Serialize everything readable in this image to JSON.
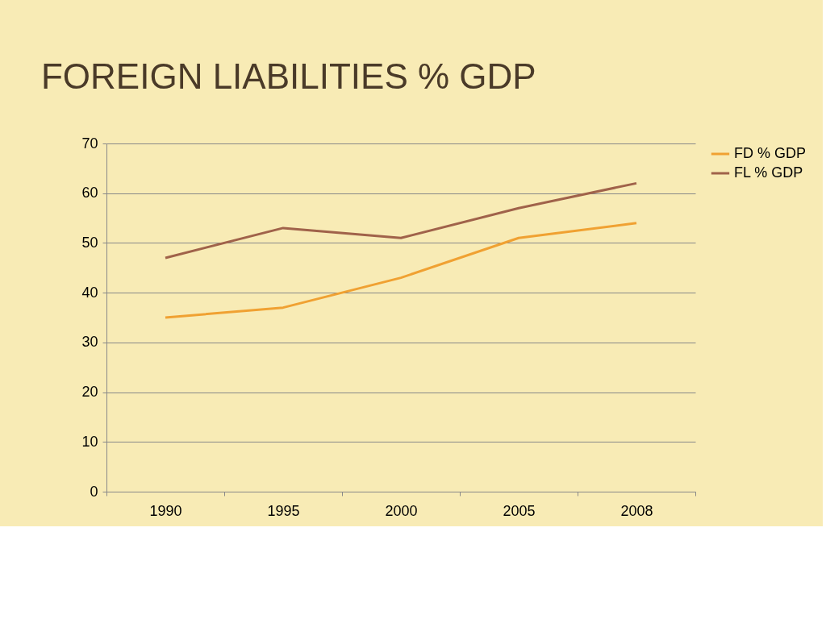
{
  "chart_data": {
    "type": "line",
    "title": "FOREIGN LIABILITIES % GDP",
    "categories": [
      "1990",
      "1995",
      "2000",
      "2005",
      "2008"
    ],
    "series": [
      {
        "name": "FD % GDP",
        "color": "#f0a132",
        "values": [
          35,
          37,
          43,
          51,
          54
        ]
      },
      {
        "name": "FL % GDP",
        "color": "#a0624a",
        "values": [
          47,
          53,
          51,
          57,
          62
        ]
      }
    ],
    "ylim": [
      0,
      70
    ],
    "yticks": [
      0,
      10,
      20,
      30,
      40,
      50,
      60,
      70
    ],
    "grid": "y",
    "legend": "right",
    "marker": "none",
    "line_style": "solid"
  }
}
